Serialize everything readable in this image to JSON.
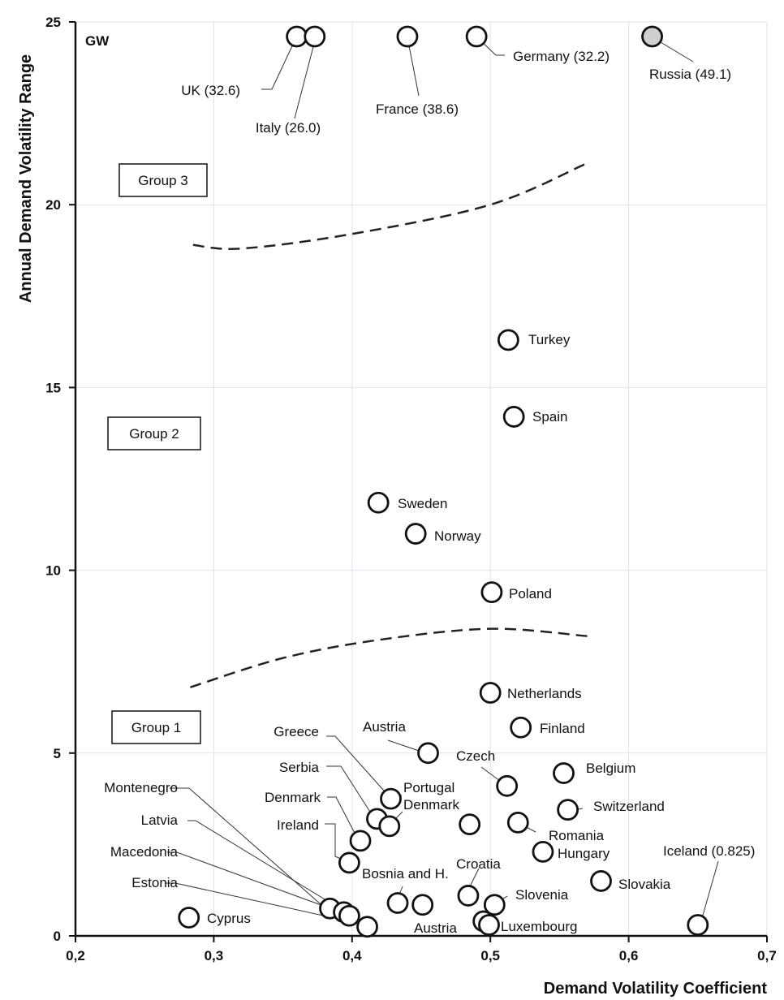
{
  "chart_data": {
    "type": "scatter",
    "unit_label": "GW",
    "xlabel": "Demand Volatility Coefficient",
    "ylabel": "Annual Demand Volatility Range",
    "xlim": [
      0.2,
      0.7
    ],
    "ylim": [
      0,
      25
    ],
    "x_ticks": [
      "0,2",
      "0,3",
      "0,4",
      "0,5",
      "0,6",
      "0,7"
    ],
    "y_ticks": [
      "0",
      "5",
      "10",
      "15",
      "20",
      "25"
    ],
    "grid": true,
    "groups": [
      "Group 1",
      "Group 2",
      "Group 3"
    ],
    "points": [
      {
        "label": "UK (32.6)",
        "x": 0.36,
        "y": 24.6,
        "highlight": false
      },
      {
        "label": "Italy (26.0)",
        "x": 0.373,
        "y": 24.6,
        "highlight": false
      },
      {
        "label": "France (38.6)",
        "x": 0.44,
        "y": 24.6,
        "highlight": false
      },
      {
        "label": "Germany (32.2)",
        "x": 0.49,
        "y": 24.6,
        "highlight": false
      },
      {
        "label": "Russia (49.1)",
        "x": 0.617,
        "y": 24.6,
        "highlight": true
      },
      {
        "label": "Turkey",
        "x": 0.513,
        "y": 16.3,
        "highlight": false
      },
      {
        "label": "Spain",
        "x": 0.517,
        "y": 14.2,
        "highlight": false
      },
      {
        "label": "Sweden",
        "x": 0.419,
        "y": 11.85,
        "highlight": false
      },
      {
        "label": "Norway",
        "x": 0.446,
        "y": 11.0,
        "highlight": false
      },
      {
        "label": "Poland",
        "x": 0.501,
        "y": 9.4,
        "highlight": false
      },
      {
        "label": "Netherlands",
        "x": 0.5,
        "y": 6.65,
        "highlight": false
      },
      {
        "label": "Finland",
        "x": 0.522,
        "y": 5.7,
        "highlight": false
      },
      {
        "label": "Austria",
        "x": 0.455,
        "y": 5.0,
        "highlight": false
      },
      {
        "label": "Belgium",
        "x": 0.553,
        "y": 4.45,
        "highlight": false
      },
      {
        "label": "Czech",
        "x": 0.512,
        "y": 4.1,
        "highlight": false
      },
      {
        "label": "Portugal",
        "x": 0.428,
        "y": 3.75,
        "highlight": false
      },
      {
        "label": "Switzerland",
        "x": 0.556,
        "y": 3.45,
        "highlight": false
      },
      {
        "label": "Serbia",
        "x": 0.418,
        "y": 3.2,
        "highlight": false
      },
      {
        "label": "Denmark",
        "x": 0.427,
        "y": 3.0,
        "highlight": false
      },
      {
        "label": "Denmark",
        "x": 0.485,
        "y": 3.05,
        "highlight": false
      },
      {
        "label": "Romania",
        "x": 0.52,
        "y": 3.1,
        "highlight": false
      },
      {
        "label": "Greece",
        "x": 0.406,
        "y": 2.6,
        "highlight": false
      },
      {
        "label": "Hungary",
        "x": 0.538,
        "y": 2.3,
        "highlight": false
      },
      {
        "label": "Ireland",
        "x": 0.398,
        "y": 2.0,
        "highlight": false
      },
      {
        "label": "Slovakia",
        "x": 0.58,
        "y": 1.5,
        "highlight": false
      },
      {
        "label": "Croatia",
        "x": 0.484,
        "y": 1.1,
        "highlight": false
      },
      {
        "label": "Bosnia and H.",
        "x": 0.433,
        "y": 0.9,
        "highlight": false
      },
      {
        "label": "",
        "x": 0.451,
        "y": 0.85,
        "highlight": false
      },
      {
        "label": "Slovenia",
        "x": 0.503,
        "y": 0.85,
        "highlight": false
      },
      {
        "label": "Montenegro",
        "x": 0.384,
        "y": 0.75,
        "highlight": false
      },
      {
        "label": "Latvia",
        "x": 0.394,
        "y": 0.65,
        "highlight": false
      },
      {
        "label": "Macedonia",
        "x": 0.398,
        "y": 0.55,
        "highlight": false
      },
      {
        "label": "Estonia",
        "x": 0.411,
        "y": 0.25,
        "highlight": false
      },
      {
        "label": "Austria",
        "x": 0.495,
        "y": 0.4,
        "highlight": false
      },
      {
        "label": "Cyprus",
        "x": 0.282,
        "y": 0.5,
        "highlight": false
      },
      {
        "label": "Iceland (0.825)",
        "x": 0.65,
        "y": 0.3,
        "highlight": false
      },
      {
        "label": "Luxembourg",
        "x": 0.499,
        "y": 0.3,
        "highlight": false
      }
    ],
    "boundaries": [
      {
        "name": "upper",
        "x": [
          0.285,
          0.32,
          0.4,
          0.5,
          0.568
        ],
        "y": [
          18.9,
          18.8,
          19.2,
          20.0,
          21.1
        ]
      },
      {
        "name": "lower",
        "x": [
          0.283,
          0.35,
          0.42,
          0.5,
          0.57
        ],
        "y": [
          6.8,
          7.6,
          8.1,
          8.4,
          8.2
        ]
      }
    ]
  }
}
